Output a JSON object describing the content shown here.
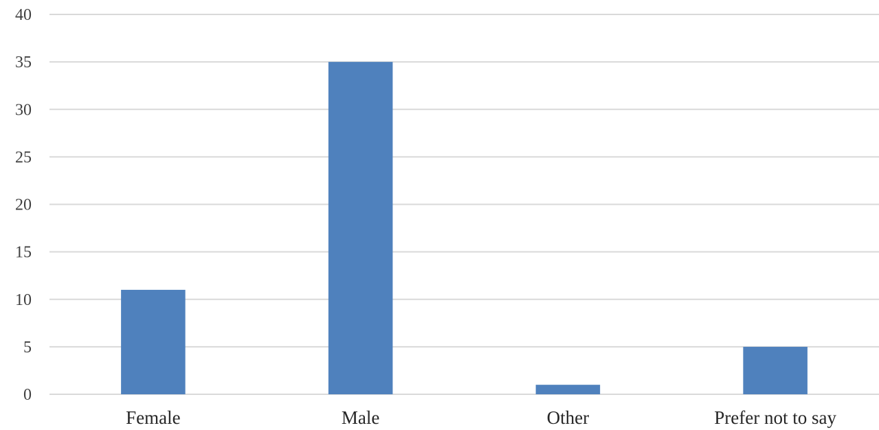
{
  "chart_data": {
    "type": "bar",
    "categories": [
      "Female",
      "Male",
      "Other",
      "Prefer not to say"
    ],
    "values": [
      11,
      35,
      1,
      5
    ],
    "title": "",
    "xlabel": "",
    "ylabel": "",
    "ylim": [
      0,
      40
    ],
    "yticks": [
      0,
      5,
      10,
      15,
      20,
      25,
      30,
      35,
      40
    ],
    "grid": true,
    "legend": "none",
    "bar_color": "#4f81bd",
    "grid_color": "#d9d9d9"
  }
}
